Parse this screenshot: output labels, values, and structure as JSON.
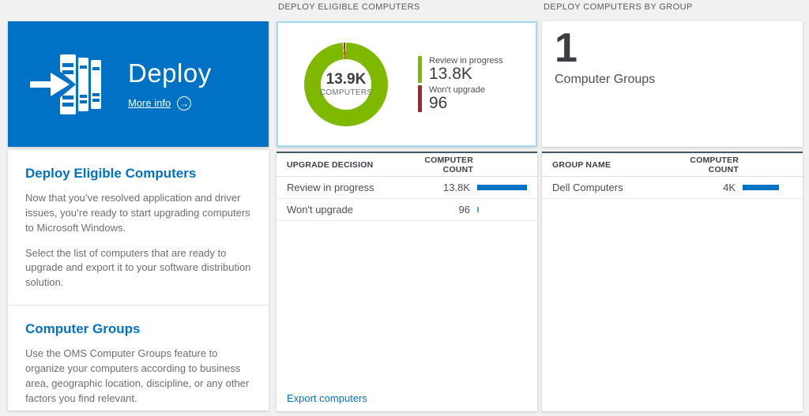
{
  "colors": {
    "bg": "#f1f1f1",
    "accent": "#0072c6",
    "green": "#7eb900",
    "red": "#a4262c",
    "dark-border": "#425863",
    "text-dark": "#3b3e42",
    "tile-border": "#a6d9f2",
    "bar-tick": "#5ca4d9"
  },
  "deploy_tile": {
    "title": "Deploy",
    "more_info_label": "More info"
  },
  "info_sections": {
    "eligible": {
      "title": "Deploy Eligible Computers",
      "p1": "Now that you’ve resolved application and driver issues, you’re ready to start upgrading computers to Microsoft Windows.",
      "p2": "Select the list of computers that are ready to upgrade and export it to your software distribution solution."
    },
    "groups": {
      "title": "Computer Groups",
      "p1": "Use the OMS Computer Groups feature to organize your computers according to business area, geographic location, discipline, or any other factors you find relevant."
    }
  },
  "eligible_panel": {
    "header": "DEPLOY ELIGIBLE COMPUTERS",
    "donut": {
      "center_value": "13.9K",
      "center_label": "COMPUTERS",
      "segments": [
        {
          "label": "Review in progress",
          "value": 13800,
          "display": "13.8K",
          "color": "#7eb900"
        },
        {
          "label": "Won't upgrade",
          "value": 96,
          "display": "96",
          "color": "#a4262c"
        }
      ]
    },
    "table": {
      "headers": [
        "UPGRADE DECISION",
        "COMPUTER COUNT"
      ],
      "rows": [
        {
          "label": "Review in progress",
          "count": "13.8K",
          "bar_pct": 100
        },
        {
          "label": "Won't upgrade",
          "count": "96",
          "bar_pct": 2
        }
      ]
    },
    "export_link": "Export computers"
  },
  "groups_panel": {
    "header": "DEPLOY COMPUTERS BY GROUP",
    "count_value": "1",
    "count_label": "Computer Groups",
    "table": {
      "headers": [
        "GROUP NAME",
        "COMPUTER COUNT"
      ],
      "rows": [
        {
          "label": "Dell Computers",
          "count": "4K",
          "bar_pct": 73
        }
      ]
    }
  },
  "chart_data": {
    "type": "pie",
    "subtype": "donut",
    "title": "DEPLOY ELIGIBLE COMPUTERS",
    "center_text": [
      "13.9K",
      "COMPUTERS"
    ],
    "categories": [
      "Review in progress",
      "Won't upgrade"
    ],
    "values": [
      13800,
      96
    ],
    "colors": [
      "#7eb900",
      "#a4262c"
    ],
    "legend_position": "right"
  }
}
